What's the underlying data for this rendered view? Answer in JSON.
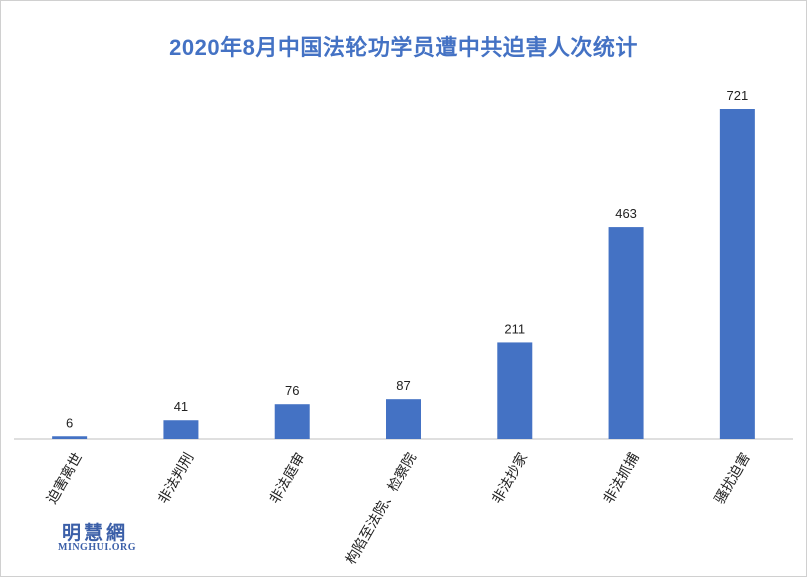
{
  "chart_data": {
    "type": "bar",
    "title": "2020年8月中国法轮功学员遭中共迫害人次统计",
    "categories": [
      "迫害离世",
      "非法判刑",
      "非法庭审",
      "构陷至法院、检察院",
      "非法抄家",
      "非法抓捕",
      "骚扰迫害"
    ],
    "values": [
      6,
      41,
      76,
      87,
      211,
      463,
      721
    ],
    "ylim": [
      0,
      750
    ],
    "xlabel": "",
    "ylabel": "",
    "grid": false,
    "bar_color": "#4472c4"
  },
  "watermark": {
    "logo_cn": "明慧網",
    "logo_en": "MINGHUI.ORG"
  }
}
